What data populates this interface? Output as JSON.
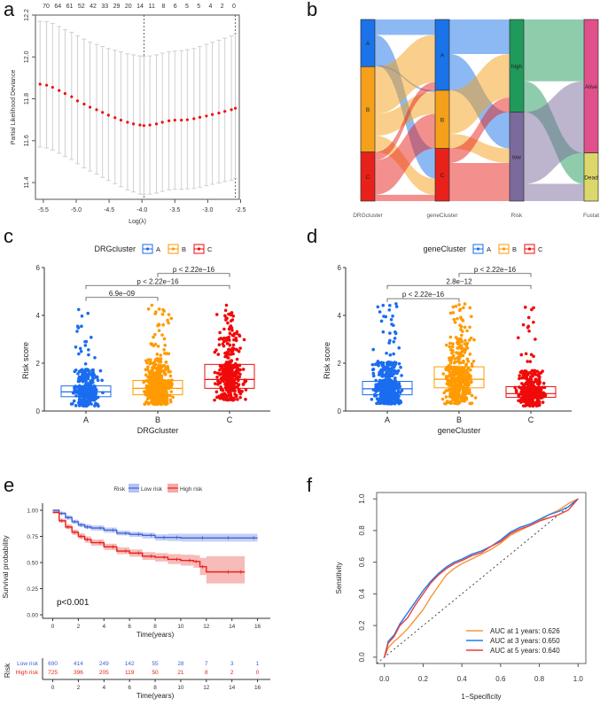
{
  "panels": {
    "a": "a",
    "b": "b",
    "c": "c",
    "d": "d",
    "e": "e",
    "f": "f"
  },
  "chart_data": [
    {
      "id": "a",
      "type": "scatter",
      "title": "",
      "xlabel": "Log(λ)",
      "ylabel": "Partial Likelihood Deviance",
      "xlim": [
        -5.62,
        -2.52
      ],
      "ylim": [
        11.32,
        12.2
      ],
      "xticks": [
        -5.5,
        -5.0,
        -4.5,
        -4.0,
        -3.5,
        -3.0,
        -2.5
      ],
      "yticks": [
        11.4,
        11.6,
        11.8,
        12.0,
        12.2
      ],
      "top_ticks": [
        "70",
        "64",
        "61",
        "52",
        "42",
        "33",
        "29",
        "20",
        "14",
        "11",
        "8",
        "6",
        "5",
        "5",
        "4",
        "2",
        "0"
      ],
      "vlines": [
        -3.97,
        -2.58
      ],
      "x": [
        -5.55,
        -5.45,
        -5.36,
        -5.26,
        -5.17,
        -5.07,
        -4.98,
        -4.88,
        -4.79,
        -4.69,
        -4.6,
        -4.51,
        -4.41,
        -4.32,
        -4.22,
        -4.13,
        -4.03,
        -3.97,
        -3.88,
        -3.78,
        -3.69,
        -3.59,
        -3.5,
        -3.4,
        -3.31,
        -3.21,
        -3.12,
        -3.02,
        -2.93,
        -2.83,
        -2.74,
        -2.64,
        -2.58
      ],
      "y": [
        11.87,
        11.865,
        11.855,
        11.84,
        11.825,
        11.81,
        11.79,
        11.775,
        11.76,
        11.748,
        11.735,
        11.722,
        11.71,
        11.698,
        11.688,
        11.68,
        11.675,
        11.672,
        11.675,
        11.68,
        11.688,
        11.695,
        11.698,
        11.698,
        11.7,
        11.705,
        11.712,
        11.718,
        11.725,
        11.732,
        11.74,
        11.748,
        11.755
      ],
      "upper": [
        12.17,
        12.168,
        12.16,
        12.145,
        12.13,
        12.118,
        12.1,
        12.085,
        12.07,
        12.06,
        12.05,
        12.04,
        12.032,
        12.025,
        12.015,
        12.01,
        12.005,
        12.003,
        12.005,
        12.01,
        12.018,
        12.025,
        12.028,
        12.03,
        12.035,
        12.04,
        12.05,
        12.06,
        12.07,
        12.08,
        12.09,
        12.1,
        12.11
      ],
      "lower": [
        11.57,
        11.565,
        11.555,
        11.54,
        11.525,
        11.51,
        11.49,
        11.47,
        11.455,
        11.44,
        11.425,
        11.41,
        11.395,
        11.38,
        11.365,
        11.355,
        11.345,
        11.343,
        11.345,
        11.35,
        11.358,
        11.365,
        11.368,
        11.368,
        11.37,
        11.372,
        11.378,
        11.385,
        11.392,
        11.398,
        11.405,
        11.41,
        11.42
      ]
    },
    {
      "id": "b",
      "type": "sankey",
      "axes": [
        "DRGcluster",
        "geneCluster",
        "Risk",
        "Fustat"
      ],
      "nodes": [
        {
          "axis": 0,
          "label": "A",
          "share": 0.26,
          "color": "#1a73e8"
        },
        {
          "axis": 0,
          "label": "B",
          "share": 0.47,
          "color": "#f5a01a"
        },
        {
          "axis": 0,
          "label": "C",
          "share": 0.27,
          "color": "#e8211b"
        },
        {
          "axis": 1,
          "label": "A",
          "share": 0.39,
          "color": "#1a73e8"
        },
        {
          "axis": 1,
          "label": "B",
          "share": 0.32,
          "color": "#f5a01a"
        },
        {
          "axis": 1,
          "label": "C",
          "share": 0.29,
          "color": "#e8211b"
        },
        {
          "axis": 2,
          "label": "high",
          "share": 0.51,
          "color": "#1f9a5a"
        },
        {
          "axis": 2,
          "label": "low",
          "share": 0.49,
          "color": "#7b6a9c"
        },
        {
          "axis": 3,
          "label": "Alive",
          "share": 0.735,
          "color": "#e0508a"
        },
        {
          "axis": 3,
          "label": "Dead",
          "share": 0.265,
          "color": "#dcd76a"
        }
      ],
      "flows": [
        {
          "from": [
            0,
            0
          ],
          "to": [
            1,
            0
          ],
          "value": 0.085,
          "color": "#1a73e8"
        },
        {
          "from": [
            0,
            0
          ],
          "to": [
            1,
            2
          ],
          "value": 0.165,
          "color": "#1a73e8"
        },
        {
          "from": [
            0,
            0
          ],
          "to": [
            1,
            1
          ],
          "value": 0.01,
          "color": "#1a73e8"
        },
        {
          "from": [
            0,
            1
          ],
          "to": [
            1,
            0
          ],
          "value": 0.26,
          "color": "#f5a01a"
        },
        {
          "from": [
            0,
            1
          ],
          "to": [
            1,
            1
          ],
          "value": 0.12,
          "color": "#f5a01a"
        },
        {
          "from": [
            0,
            1
          ],
          "to": [
            1,
            2
          ],
          "value": 0.09,
          "color": "#f5a01a"
        },
        {
          "from": [
            0,
            2
          ],
          "to": [
            1,
            0
          ],
          "value": 0.045,
          "color": "#e8211b"
        },
        {
          "from": [
            0,
            2
          ],
          "to": [
            1,
            1
          ],
          "value": 0.19,
          "color": "#e8211b"
        },
        {
          "from": [
            0,
            2
          ],
          "to": [
            1,
            2
          ],
          "value": 0.035,
          "color": "#e8211b"
        },
        {
          "from": [
            1,
            0
          ],
          "to": [
            2,
            0
          ],
          "value": 0.19,
          "color": "#1a73e8"
        },
        {
          "from": [
            1,
            0
          ],
          "to": [
            2,
            1
          ],
          "value": 0.2,
          "color": "#1a73e8"
        },
        {
          "from": [
            1,
            1
          ],
          "to": [
            2,
            0
          ],
          "value": 0.24,
          "color": "#f5a01a"
        },
        {
          "from": [
            1,
            1
          ],
          "to": [
            2,
            1
          ],
          "value": 0.08,
          "color": "#f5a01a"
        },
        {
          "from": [
            1,
            2
          ],
          "to": [
            2,
            0
          ],
          "value": 0.08,
          "color": "#e8211b"
        },
        {
          "from": [
            1,
            2
          ],
          "to": [
            2,
            1
          ],
          "value": 0.21,
          "color": "#e8211b"
        },
        {
          "from": [
            2,
            0
          ],
          "to": [
            3,
            0
          ],
          "value": 0.34,
          "color": "#1f9a5a"
        },
        {
          "from": [
            2,
            0
          ],
          "to": [
            3,
            1
          ],
          "value": 0.17,
          "color": "#1f9a5a"
        },
        {
          "from": [
            2,
            1
          ],
          "to": [
            3,
            0
          ],
          "value": 0.395,
          "color": "#7b6a9c"
        },
        {
          "from": [
            2,
            1
          ],
          "to": [
            3,
            1
          ],
          "value": 0.095,
          "color": "#7b6a9c"
        }
      ]
    },
    {
      "id": "c",
      "type": "box",
      "legend_title": "DRGcluster",
      "xlabel": "DRGcluster",
      "ylabel": "Risk score",
      "ylim": [
        0,
        6
      ],
      "yticks": [
        0,
        2,
        4,
        6
      ],
      "categories": [
        "A",
        "B",
        "C"
      ],
      "colors": [
        "#1a6cf0",
        "#ff9a00",
        "#f00a0a"
      ],
      "boxes": [
        {
          "q1": 0.6,
          "median": 0.8,
          "q3": 1.05,
          "whisker_low": 0.2,
          "whisker_high": 1.75,
          "max": 4.55,
          "n": 330
        },
        {
          "q1": 0.68,
          "median": 0.95,
          "q3": 1.28,
          "whisker_low": 0.28,
          "whisker_high": 2.2,
          "max": 4.55,
          "n": 620
        },
        {
          "q1": 0.95,
          "median": 1.32,
          "q3": 1.95,
          "whisker_low": 0.45,
          "whisker_high": 3.45,
          "max": 4.55,
          "n": 360
        }
      ],
      "comparisons": [
        {
          "pair": [
            0,
            1
          ],
          "label": "6.9e−09",
          "y": 4.75
        },
        {
          "pair": [
            0,
            2
          ],
          "label": "p < 2.22e−16",
          "y": 5.25
        },
        {
          "pair": [
            1,
            2
          ],
          "label": "p < 2.22e−16",
          "y": 5.75
        }
      ]
    },
    {
      "id": "d",
      "type": "box",
      "legend_title": "geneCluster",
      "xlabel": "geneCluster",
      "ylabel": "Risk score",
      "ylim": [
        0,
        6
      ],
      "yticks": [
        0,
        2,
        4,
        6
      ],
      "categories": [
        "A",
        "B",
        "C"
      ],
      "colors": [
        "#1a6cf0",
        "#ff9a00",
        "#f00a0a"
      ],
      "boxes": [
        {
          "q1": 0.68,
          "median": 0.93,
          "q3": 1.24,
          "whisker_low": 0.3,
          "whisker_high": 2.05,
          "max": 4.55,
          "n": 520
        },
        {
          "q1": 0.97,
          "median": 1.33,
          "q3": 1.85,
          "whisker_low": 0.3,
          "whisker_high": 3.1,
          "max": 4.55,
          "n": 430
        },
        {
          "q1": 0.57,
          "median": 0.73,
          "q3": 1.02,
          "whisker_low": 0.2,
          "whisker_high": 1.7,
          "max": 4.55,
          "n": 380
        }
      ],
      "comparisons": [
        {
          "pair": [
            0,
            1
          ],
          "label": "p < 2.22e−16",
          "y": 4.7
        },
        {
          "pair": [
            0,
            2
          ],
          "label": "2.8e−12",
          "y": 5.25
        },
        {
          "pair": [
            1,
            2
          ],
          "label": "p < 2.22e−16",
          "y": 5.75
        }
      ]
    },
    {
      "id": "e",
      "type": "line",
      "legend_title": "Risk",
      "xlabel": "Time(years)",
      "ylabel": "Survival probability",
      "xlim": [
        -0.8,
        17
      ],
      "ylim": [
        0,
        1
      ],
      "xticks": [
        0,
        2,
        4,
        6,
        8,
        10,
        12,
        14,
        16
      ],
      "yticks": [
        "0.00",
        "0.25",
        "0.50",
        "0.75",
        "1.00"
      ],
      "pvalue": "p<0.001",
      "series": [
        {
          "name": "Low risk",
          "color": "#4063d8",
          "band": "#b5c3f2",
          "x": [
            0,
            0.5,
            1,
            1.5,
            2,
            2.5,
            3,
            4,
            5,
            6,
            7,
            8,
            9,
            10,
            12,
            14,
            16
          ],
          "y": [
            1.0,
            0.97,
            0.93,
            0.89,
            0.86,
            0.84,
            0.83,
            0.81,
            0.78,
            0.77,
            0.76,
            0.74,
            0.74,
            0.735,
            0.735,
            0.735,
            0.735
          ],
          "lo": [
            0.99,
            0.955,
            0.91,
            0.87,
            0.84,
            0.82,
            0.805,
            0.785,
            0.76,
            0.745,
            0.73,
            0.71,
            0.705,
            0.7,
            0.7,
            0.7,
            0.7
          ],
          "hi": [
            1.0,
            0.985,
            0.95,
            0.91,
            0.88,
            0.865,
            0.855,
            0.835,
            0.805,
            0.795,
            0.785,
            0.77,
            0.775,
            0.775,
            0.775,
            0.775,
            0.775
          ]
        },
        {
          "name": "High risk",
          "color": "#e8211b",
          "band": "#f5aaa8",
          "x": [
            0,
            0.5,
            1,
            1.5,
            2,
            2.5,
            3,
            4,
            5,
            6,
            7,
            8,
            9,
            10,
            11,
            11.5,
            12,
            14,
            15
          ],
          "y": [
            0.98,
            0.9,
            0.84,
            0.79,
            0.75,
            0.72,
            0.69,
            0.65,
            0.61,
            0.59,
            0.56,
            0.55,
            0.53,
            0.52,
            0.51,
            0.46,
            0.41,
            0.41,
            0.41
          ],
          "lo": [
            0.965,
            0.88,
            0.82,
            0.765,
            0.725,
            0.69,
            0.66,
            0.62,
            0.58,
            0.555,
            0.525,
            0.51,
            0.485,
            0.47,
            0.45,
            0.38,
            0.3,
            0.3,
            0.3
          ],
          "hi": [
            0.995,
            0.92,
            0.865,
            0.815,
            0.78,
            0.75,
            0.72,
            0.68,
            0.645,
            0.625,
            0.6,
            0.59,
            0.58,
            0.575,
            0.57,
            0.545,
            0.56,
            0.56,
            0.56
          ]
        }
      ],
      "risk_table": {
        "title": "Risk",
        "rows": [
          {
            "name": "Low risk",
            "color": "#4063d8",
            "values": [
              "690",
              "414",
              "249",
              "142",
              "55",
              "28",
              "7",
              "3",
              "1"
            ]
          },
          {
            "name": "High risk",
            "color": "#e8211b",
            "values": [
              "725",
              "396",
              "205",
              "119",
              "50",
              "21",
              "8",
              "2",
              "0"
            ]
          }
        ],
        "xlabel": "Time(years)"
      }
    },
    {
      "id": "f",
      "type": "line",
      "xlabel": "1−Specificity",
      "ylabel": "Sensitivity",
      "xlim": [
        -0.04,
        1.04
      ],
      "ylim": [
        -0.04,
        1.04
      ],
      "xticks": [
        "0.0",
        "0.2",
        "0.4",
        "0.6",
        "0.8",
        "1.0"
      ],
      "yticks": [
        "0.0",
        "0.2",
        "0.4",
        "0.6",
        "0.8",
        "1.0"
      ],
      "series": [
        {
          "name": "AUC at 1 years: 0.626",
          "color": "#f5953a",
          "x": [
            0,
            0.02,
            0.05,
            0.08,
            0.12,
            0.16,
            0.2,
            0.24,
            0.28,
            0.32,
            0.36,
            0.4,
            0.45,
            0.5,
            0.55,
            0.6,
            0.65,
            0.7,
            0.75,
            0.8,
            0.85,
            0.9,
            0.95,
            1.0
          ],
          "y": [
            0,
            0.06,
            0.1,
            0.13,
            0.18,
            0.24,
            0.3,
            0.38,
            0.45,
            0.52,
            0.56,
            0.59,
            0.62,
            0.65,
            0.68,
            0.72,
            0.77,
            0.8,
            0.83,
            0.86,
            0.9,
            0.93,
            0.97,
            1.0
          ]
        },
        {
          "name": "AUC at 3 years: 0.650",
          "color": "#1e7df0",
          "x": [
            0,
            0.02,
            0.05,
            0.08,
            0.12,
            0.16,
            0.2,
            0.24,
            0.28,
            0.32,
            0.36,
            0.4,
            0.45,
            0.5,
            0.55,
            0.6,
            0.65,
            0.7,
            0.75,
            0.8,
            0.85,
            0.9,
            0.95,
            1.0
          ],
          "y": [
            0,
            0.1,
            0.14,
            0.21,
            0.28,
            0.35,
            0.42,
            0.48,
            0.53,
            0.57,
            0.6,
            0.62,
            0.65,
            0.67,
            0.7,
            0.74,
            0.79,
            0.82,
            0.84,
            0.87,
            0.9,
            0.92,
            0.95,
            1.0
          ]
        },
        {
          "name": "AUC at 5 years: 0.640",
          "color": "#ee3c3c",
          "x": [
            0,
            0.02,
            0.05,
            0.08,
            0.12,
            0.16,
            0.2,
            0.24,
            0.28,
            0.32,
            0.36,
            0.4,
            0.45,
            0.5,
            0.55,
            0.6,
            0.65,
            0.7,
            0.75,
            0.8,
            0.85,
            0.9,
            0.95,
            1.0
          ],
          "y": [
            0,
            0.09,
            0.13,
            0.2,
            0.25,
            0.33,
            0.4,
            0.47,
            0.52,
            0.56,
            0.59,
            0.61,
            0.64,
            0.66,
            0.7,
            0.73,
            0.78,
            0.81,
            0.83,
            0.86,
            0.88,
            0.9,
            0.93,
            1.0
          ]
        }
      ]
    }
  ]
}
